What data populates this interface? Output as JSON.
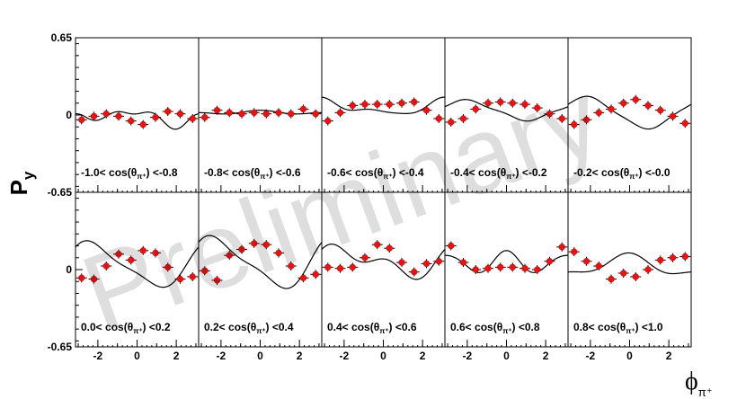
{
  "chart_data": {
    "type": "scatter",
    "ylabel_main": "P",
    "ylabel_sub": "y",
    "xlabel_main": "ϕ",
    "xlabel_sub": "π⁺",
    "watermark": "Preliminary",
    "xlim": [
      -3.14,
      3.14
    ],
    "ylim": [
      -0.65,
      0.65
    ],
    "y_tick_labels": [
      "0.65",
      "0",
      "-0.65"
    ],
    "y_tick_values": [
      0.65,
      0,
      -0.65
    ],
    "x_tick_labels": [
      "-2",
      "0",
      "2"
    ],
    "x_tick_values": [
      -2,
      0,
      2
    ],
    "x": [
      -2.83,
      -2.2,
      -1.57,
      -0.94,
      -0.31,
      0.31,
      0.94,
      1.57,
      2.2,
      2.83
    ],
    "panels": [
      {
        "label": "-1.0< cos(θ",
        "label_sub": "π⁺",
        "label_end": ") <-0.8",
        "y": [
          -0.04,
          -0.01,
          0.01,
          -0.01,
          -0.05,
          -0.08,
          -0.02,
          0.03,
          0.01,
          -0.03
        ],
        "curve": [
          -0.02,
          0.03,
          -0.03,
          0.03,
          0.01,
          -0.03,
          0.01,
          0.0
        ]
      },
      {
        "label": "-0.8< cos(θ",
        "label_sub": "π⁺",
        "label_end": ") <-0.6",
        "y": [
          -0.02,
          0.04,
          0.02,
          0.01,
          0.02,
          0.01,
          0.02,
          0.01,
          0.05,
          0.01
        ],
        "curve": [
          0.02,
          0.01,
          0.0,
          0.01,
          0.0,
          0.0,
          0.0,
          0.0
        ]
      },
      {
        "label": "-0.6< cos(θ",
        "label_sub": "π⁺",
        "label_end": ") <-0.4",
        "y": [
          -0.05,
          0.02,
          0.08,
          0.09,
          0.09,
          0.09,
          0.1,
          0.11,
          0.04,
          -0.03
        ],
        "curve": [
          0.06,
          -0.05,
          -0.01,
          0.03,
          -0.01,
          -0.01,
          0.0,
          0.0
        ]
      },
      {
        "label": "-0.4< cos(θ",
        "label_sub": "π⁺",
        "label_end": ") <-0.2",
        "y": [
          -0.06,
          -0.03,
          0.05,
          0.1,
          0.11,
          0.1,
          0.09,
          0.06,
          0.01,
          -0.03
        ],
        "curve": [
          0.04,
          -0.04,
          -0.07,
          0.0,
          0.0,
          0.01,
          0.0,
          0.0
        ]
      },
      {
        "label": "-0.2< cos(θ",
        "label_sub": "π⁺",
        "label_end": ") <-0.0",
        "y": [
          -0.08,
          -0.04,
          0.02,
          0.05,
          0.1,
          0.13,
          0.08,
          0.04,
          -0.01,
          -0.07
        ],
        "curve": [
          0.02,
          -0.08,
          -0.1,
          0.0,
          0.0,
          0.01,
          0.0,
          0.0
        ]
      },
      {
        "label": "0.0< cos(θ",
        "label_sub": "π⁺",
        "label_end": ") <0.2",
        "y": [
          -0.07,
          -0.08,
          0.03,
          0.13,
          0.08,
          0.16,
          0.14,
          0.02,
          -0.08,
          -0.06
        ],
        "curve": [
          0.04,
          -0.11,
          -0.14,
          0.04,
          0.02,
          0.0,
          0.0,
          0.0
        ]
      },
      {
        "label": "0.2< cos(θ",
        "label_sub": "π⁺",
        "label_end": ") <0.4",
        "y": [
          -0.01,
          -0.09,
          0.12,
          0.17,
          0.22,
          0.21,
          0.14,
          0.03,
          -0.07,
          -0.04
        ],
        "curve": [
          0.06,
          -0.12,
          -0.16,
          0.05,
          0.02,
          0.0,
          0.0,
          0.0
        ]
      },
      {
        "label": "0.4< cos(θ",
        "label_sub": "π⁺",
        "label_end": ") <0.6",
        "y": [
          0.02,
          0.01,
          0.02,
          0.1,
          0.21,
          0.18,
          0.06,
          -0.02,
          0.05,
          0.07
        ],
        "curve": [
          0.07,
          -0.04,
          -0.09,
          0.06,
          0.04,
          0.0,
          0.0,
          0.0
        ]
      },
      {
        "label": "0.6< cos(θ",
        "label_sub": "π⁺",
        "label_end": ") <0.8",
        "y": [
          0.2,
          0.06,
          0.0,
          0.01,
          0.02,
          0.02,
          0.01,
          0.0,
          0.07,
          0.19
        ],
        "curve": [
          0.06,
          0.0,
          0.0,
          0.08,
          0.0,
          0.02,
          0.0,
          0.0
        ]
      },
      {
        "label": "0.8< cos(θ",
        "label_sub": "π⁺",
        "label_end": ") <1.0",
        "y": [
          0.15,
          0.07,
          0.03,
          -0.08,
          -0.03,
          -0.06,
          0.0,
          0.08,
          0.1,
          0.11
        ],
        "curve": [
          0.03,
          0.08,
          -0.01,
          0.03,
          0.0,
          0.0,
          0.0,
          0.0
        ]
      }
    ]
  }
}
